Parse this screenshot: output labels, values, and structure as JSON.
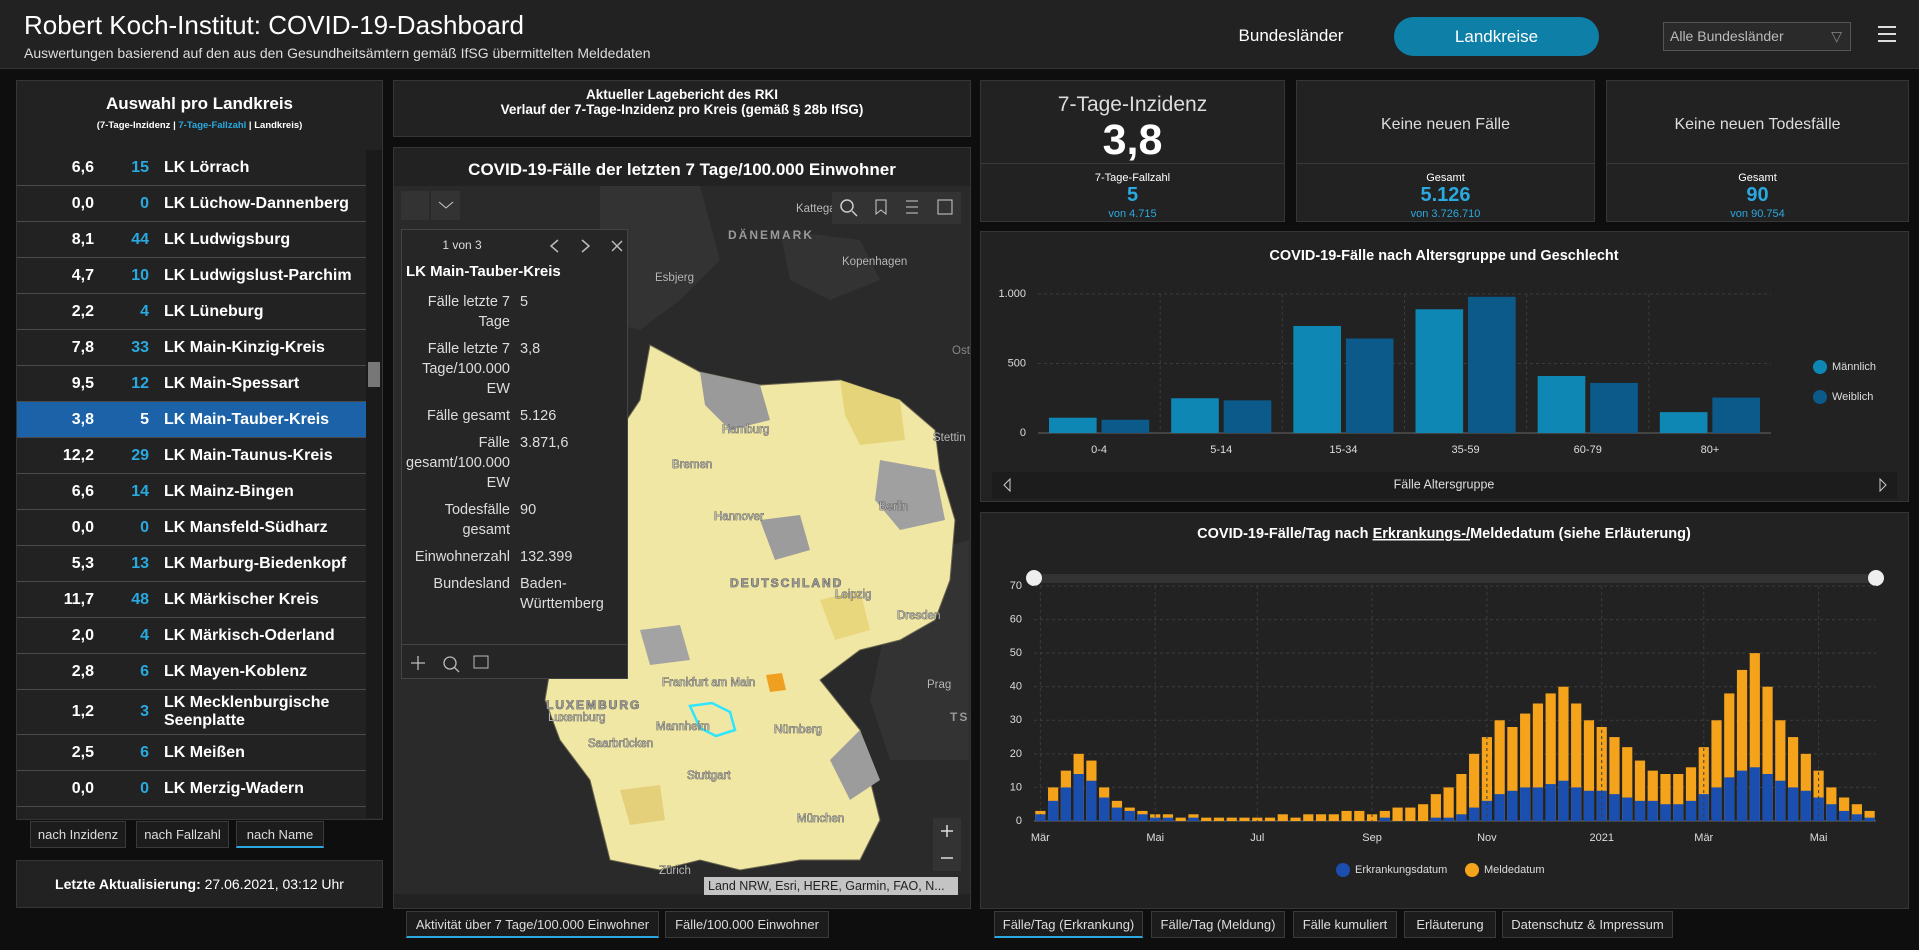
{
  "header": {
    "title": "Robert Koch-Institut: COVID-19-Dashboard",
    "subtitle": "Auswertungen basierend auf den aus den Gesundheitsämtern gemäß IfSG übermittelten Meldedaten",
    "nav": [
      "Bundesländer",
      "Landkreise"
    ],
    "dropdown": "Alle Bundesländer"
  },
  "list": {
    "title": "Auswahl pro Landkreis",
    "legend": [
      "(7-Tage-Inzidenz | ",
      "7-Tage-Fallzahl",
      " | Landkreis)"
    ],
    "rows": [
      [
        "6,6",
        "15",
        "LK Lörrach"
      ],
      [
        "0,0",
        "0",
        "LK Lüchow-Dannenberg"
      ],
      [
        "8,1",
        "44",
        "LK Ludwigsburg"
      ],
      [
        "4,7",
        "10",
        "LK Ludwigslust-Parchim"
      ],
      [
        "2,2",
        "4",
        "LK Lüneburg"
      ],
      [
        "7,8",
        "33",
        "LK Main-Kinzig-Kreis"
      ],
      [
        "9,5",
        "12",
        "LK Main-Spessart"
      ],
      [
        "3,8",
        "5",
        "LK Main-Tauber-Kreis"
      ],
      [
        "12,2",
        "29",
        "LK Main-Taunus-Kreis"
      ],
      [
        "6,6",
        "14",
        "LK Mainz-Bingen"
      ],
      [
        "0,0",
        "0",
        "LK Mansfeld-Südharz"
      ],
      [
        "5,3",
        "13",
        "LK Marburg-Biedenkopf"
      ],
      [
        "11,7",
        "48",
        "LK Märkischer Kreis"
      ],
      [
        "2,0",
        "4",
        "LK Märkisch-Oderland"
      ],
      [
        "2,8",
        "6",
        "LK Mayen-Koblenz"
      ],
      [
        "1,2",
        "3",
        "LK Mecklenburgische Seenplatte"
      ],
      [
        "2,5",
        "6",
        "LK Meißen"
      ],
      [
        "0,0",
        "0",
        "LK Merzig-Wadern"
      ]
    ],
    "selected": 7,
    "sort_buttons": [
      "nach Inzidenz",
      "nach Fallzahl",
      "nach Name"
    ],
    "update_label": "Letzte Aktualisierung:",
    "update_value": "27.06.2021, 03:12 Uhr"
  },
  "report": {
    "line1": "Aktueller Lagebericht des RKI",
    "line2": "Verlauf der 7-Tage-Inzidenz pro Kreis (gemäß § 28b IfSG)"
  },
  "map": {
    "title": "COVID-19-Fälle der letzten 7 Tage/100.000 Einwohner",
    "labels": [
      "Kattegat",
      "DÄNEMARK",
      "Esbjerg",
      "Kopenhagen",
      "Ostse",
      "Hamburg",
      "Bremen",
      "Stettin",
      "Hannover",
      "Berlin",
      "DEUTSCHLAND",
      "Leipzig",
      "Dresden",
      "Prag",
      "TSCH",
      "Frankfurt am Main",
      "Mannheim",
      "Nürnberg",
      "LUXEMBURG",
      "Luxemburg",
      "Saarbrücken",
      "Stuttgart",
      "München",
      "Zürich"
    ],
    "attribution": "Land NRW, Esri, HERE, Garmin, FAO, N...",
    "popup": {
      "counter": "1 von 3",
      "title": "LK Main-Tauber-Kreis",
      "fields": [
        [
          "Fälle letzte 7 Tage",
          "5"
        ],
        [
          "Fälle letzte 7 Tage/100.000 EW",
          "3,8"
        ],
        [
          "Fälle gesamt",
          "5.126"
        ],
        [
          "Fälle gesamt/100.000 EW",
          "3.871,6"
        ],
        [
          "Todesfälle gesamt",
          "90"
        ],
        [
          "Einwohnerzahl",
          "132.399"
        ],
        [
          "Bundesland",
          "Baden-Württemberg"
        ]
      ]
    },
    "tabs": [
      "Aktivität über 7 Tage/100.000 Einwohner",
      "Fälle/100.000 Einwohner"
    ]
  },
  "kpis": [
    {
      "title": "7-Tage-Inzidenz",
      "value": "3,8",
      "sub_label": "7-Tage-Fallzahl",
      "sub_value": "5",
      "sub_note": "von 4.715"
    },
    {
      "title": "Keine neuen Fälle",
      "sub_label": "Gesamt",
      "sub_value": "5.126",
      "sub_note": "von 3.726.710"
    },
    {
      "title": "Keine neuen Todesfälle",
      "sub_label": "Gesamt",
      "sub_value": "90",
      "sub_note": "von 90.754"
    }
  ],
  "chart_data": [
    {
      "type": "bar",
      "barmode": "group",
      "title": "COVID-19-Fälle nach Altersgruppe und Geschlecht",
      "xlabel": "Fälle Altersgruppe",
      "categories": [
        "0-4",
        "5-14",
        "15-34",
        "35-59",
        "60-79",
        "80+"
      ],
      "series": [
        {
          "name": "Männlich",
          "color": "#0f87b4",
          "values": [
            110,
            250,
            770,
            890,
            410,
            150
          ]
        },
        {
          "name": "Weiblich",
          "color": "#0c5a8a",
          "values": [
            95,
            235,
            680,
            980,
            360,
            255
          ]
        }
      ],
      "ylim": [
        0,
        1000
      ],
      "yticks": [
        0,
        500,
        {
          "value": 1000,
          "label": "1.000"
        }
      ],
      "grid": true
    },
    {
      "type": "bar",
      "barmode": "overlay",
      "title": [
        "COVID-19-Fälle/Tag nach ",
        "Erkrankungs-/",
        "Meldedatum (siehe Erläuterung)"
      ],
      "categories": [
        "Mär",
        null,
        null,
        null,
        null,
        null,
        null,
        null,
        null,
        "Mai",
        null,
        null,
        null,
        null,
        null,
        null,
        null,
        "Jul",
        null,
        null,
        null,
        null,
        null,
        null,
        null,
        null,
        "Sep",
        null,
        null,
        null,
        null,
        null,
        null,
        null,
        null,
        "Nov",
        null,
        null,
        null,
        null,
        null,
        null,
        null,
        null,
        "2021",
        null,
        null,
        null,
        null,
        null,
        null,
        null,
        "Mär",
        null,
        null,
        null,
        null,
        null,
        null,
        null,
        null,
        "Mai",
        null,
        null,
        null,
        null
      ],
      "series": [
        {
          "name": "Erkrankungsdatum",
          "color": "#1a4fb0",
          "values": [
            2,
            6,
            10,
            14,
            12,
            7,
            4,
            3,
            2,
            1,
            1,
            0,
            1,
            0,
            0,
            0,
            0,
            0,
            0,
            0,
            0,
            0,
            0,
            0,
            0,
            0,
            0,
            1,
            0,
            0,
            0,
            1,
            1,
            2,
            4,
            6,
            8,
            9,
            10,
            10,
            11,
            12,
            10,
            9,
            9,
            8,
            7,
            6,
            6,
            5,
            5,
            6,
            8,
            10,
            13,
            15,
            16,
            14,
            12,
            10,
            9,
            7,
            5,
            3,
            2,
            1
          ]
        },
        {
          "name": "Meldedatum",
          "color": "#f5a31a",
          "values": [
            3,
            10,
            15,
            20,
            18,
            10,
            6,
            4,
            3,
            2,
            2,
            1,
            2,
            1,
            1,
            1,
            1,
            1,
            1,
            2,
            1,
            2,
            2,
            2,
            3,
            3,
            2,
            3,
            4,
            4,
            5,
            8,
            10,
            14,
            20,
            25,
            30,
            28,
            32,
            35,
            38,
            40,
            35,
            30,
            28,
            25,
            22,
            18,
            15,
            14,
            14,
            16,
            22,
            30,
            38,
            45,
            50,
            40,
            30,
            25,
            20,
            15,
            10,
            7,
            5,
            3
          ]
        }
      ],
      "ylim": [
        0,
        70
      ],
      "yticks": [
        0,
        10,
        20,
        30,
        40,
        50,
        60,
        70
      ],
      "grid": true
    }
  ],
  "bottom_tabs": [
    "Fälle/Tag (Erkrankung)",
    "Fälle/Tag (Meldung)",
    "Fälle kumuliert",
    "Erläuterung",
    "Datenschutz & Impressum"
  ]
}
